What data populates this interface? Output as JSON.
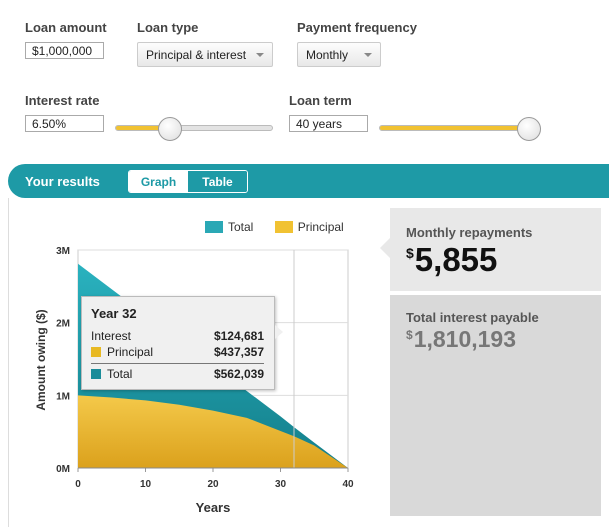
{
  "inputs": {
    "loan_amount": {
      "label": "Loan amount",
      "value": "$1,000,000"
    },
    "loan_type": {
      "label": "Loan type",
      "value": "Principal & interest"
    },
    "payment_frequency": {
      "label": "Payment frequency",
      "value": "Monthly"
    },
    "interest_rate": {
      "label": "Interest rate",
      "value": "6.50%",
      "slider_level": 0.35
    },
    "loan_term": {
      "label": "Loan term",
      "value": "40 years",
      "slider_level": 1.0
    }
  },
  "results": {
    "title": "Your results",
    "tabs": [
      "Graph",
      "Table"
    ],
    "active_tab": "Graph",
    "monthly_repayments": {
      "label": "Monthly repayments",
      "currency": "$",
      "value": "5,855"
    },
    "total_interest": {
      "label": "Total interest payable",
      "currency": "$",
      "value": "1,810,193"
    }
  },
  "tooltip": {
    "title": "Year 32",
    "rows": [
      {
        "label": "Interest",
        "value": "$124,681"
      },
      {
        "label": "Principal",
        "value": "$437,357"
      },
      {
        "label": "Total",
        "value": "$562,039"
      }
    ]
  },
  "colors": {
    "teal": "#1e9aa6",
    "gold": "#f1c232",
    "total_fill": "#1a8c99",
    "principal_fill": "#e8b923"
  },
  "chart_data": {
    "type": "area",
    "xlabel": "Years",
    "ylabel": "Amount owing ($)",
    "xlim": [
      0,
      40
    ],
    "ylim": [
      0,
      3000000
    ],
    "x_ticks": [
      0,
      10,
      20,
      30,
      40
    ],
    "y_ticks": [
      "0M",
      "1M",
      "2M",
      "3M"
    ],
    "legend": [
      "Total",
      "Principal"
    ],
    "legend_position": "top",
    "series": [
      {
        "name": "Total",
        "x": [
          0,
          5,
          10,
          15,
          20,
          25,
          30,
          32,
          35,
          40
        ],
        "values": [
          2810000,
          2460000,
          2110000,
          1760000,
          1410000,
          1060000,
          710000,
          562039,
          350000,
          0
        ]
      },
      {
        "name": "Principal",
        "x": [
          0,
          5,
          10,
          15,
          20,
          25,
          30,
          32,
          35,
          40
        ],
        "values": [
          1000000,
          970000,
          930000,
          870000,
          790000,
          690000,
          510000,
          437357,
          310000,
          0
        ]
      }
    ],
    "highlight_x": 32
  }
}
